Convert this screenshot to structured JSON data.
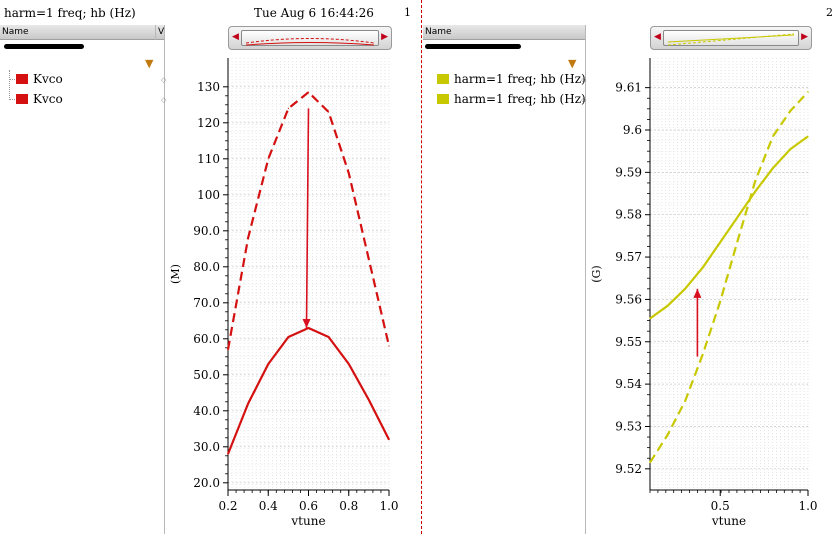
{
  "header": {
    "trace_title": "harm=1 freq; hb (Hz)",
    "timestamp": "Tue Aug 6 16:44:26"
  },
  "colors": {
    "kvco_red": "#d41010",
    "freq_yellow": "#c8c800",
    "grid": "#c8c8c8",
    "divider": "#d00000"
  },
  "panel1": {
    "number": "1",
    "list": {
      "col_name": "Name",
      "col_v": "V",
      "items": [
        {
          "label": "Kvco",
          "color": "#d41010"
        },
        {
          "label": "Kvco",
          "color": "#d41010"
        }
      ]
    }
  },
  "panel2": {
    "number": "2",
    "list": {
      "col_name": "Name",
      "items": [
        {
          "label": "harm=1 freq; hb (Hz)",
          "color": "#c8c800"
        },
        {
          "label": "harm=1 freq; hb (Hz)",
          "color": "#c8c800"
        }
      ]
    }
  },
  "chart_data": [
    {
      "type": "line",
      "xlabel": "vtune",
      "ylabel": "(M)",
      "xlim": [
        0.2,
        1.0
      ],
      "ylim": [
        18,
        138
      ],
      "xticks": [
        "0.2",
        "0.4",
        "0.6",
        "0.8",
        "1.0"
      ],
      "yticks": [
        "20.0",
        "30.0",
        "40.0",
        "50.0",
        "60.0",
        "70.0",
        "80.0",
        "90.0",
        "100",
        "110",
        "120",
        "130"
      ],
      "grid": true,
      "series": [
        {
          "style": "dashed",
          "color": "#d41010",
          "x": [
            0.2,
            0.3,
            0.4,
            0.5,
            0.6,
            0.7,
            0.8,
            0.9,
            1.0
          ],
          "y": [
            57,
            88,
            110,
            124,
            128.5,
            123,
            106,
            82,
            58
          ]
        },
        {
          "style": "solid",
          "color": "#d41010",
          "x": [
            0.2,
            0.3,
            0.4,
            0.5,
            0.6,
            0.7,
            0.8,
            0.9,
            1.0
          ],
          "y": [
            28,
            42,
            53,
            60.5,
            63,
            60.5,
            53,
            43,
            32
          ]
        }
      ],
      "annotation": {
        "type": "arrow",
        "from": [
          0.6,
          124
        ],
        "to": [
          0.59,
          63
        ]
      }
    },
    {
      "type": "line",
      "xlabel": "vtune",
      "ylabel": "(G)",
      "xlim": [
        0.1,
        1.0
      ],
      "ylim": [
        9.515,
        9.617
      ],
      "xticks": [
        "0.5",
        "1.0"
      ],
      "yticks": [
        "9.52",
        "9.53",
        "9.54",
        "9.55",
        "9.56",
        "9.57",
        "9.58",
        "9.59",
        "9.6",
        "9.61"
      ],
      "grid": true,
      "series": [
        {
          "style": "solid",
          "color": "#c8c800",
          "x": [
            0.1,
            0.2,
            0.3,
            0.4,
            0.5,
            0.6,
            0.7,
            0.8,
            0.9,
            1.0
          ],
          "y": [
            9.5555,
            9.5585,
            9.5625,
            9.5675,
            9.5735,
            9.5795,
            9.5855,
            9.591,
            9.5955,
            9.5985
          ]
        },
        {
          "style": "dashed",
          "color": "#c8c800",
          "x": [
            0.1,
            0.2,
            0.3,
            0.4,
            0.5,
            0.6,
            0.7,
            0.8,
            0.9,
            1.0
          ],
          "y": [
            9.5215,
            9.528,
            9.536,
            9.547,
            9.5595,
            9.574,
            9.588,
            9.5985,
            9.6045,
            9.609
          ]
        }
      ],
      "annotation": {
        "type": "arrow",
        "from": [
          0.37,
          9.5465
        ],
        "to": [
          0.37,
          9.5625
        ]
      }
    }
  ]
}
